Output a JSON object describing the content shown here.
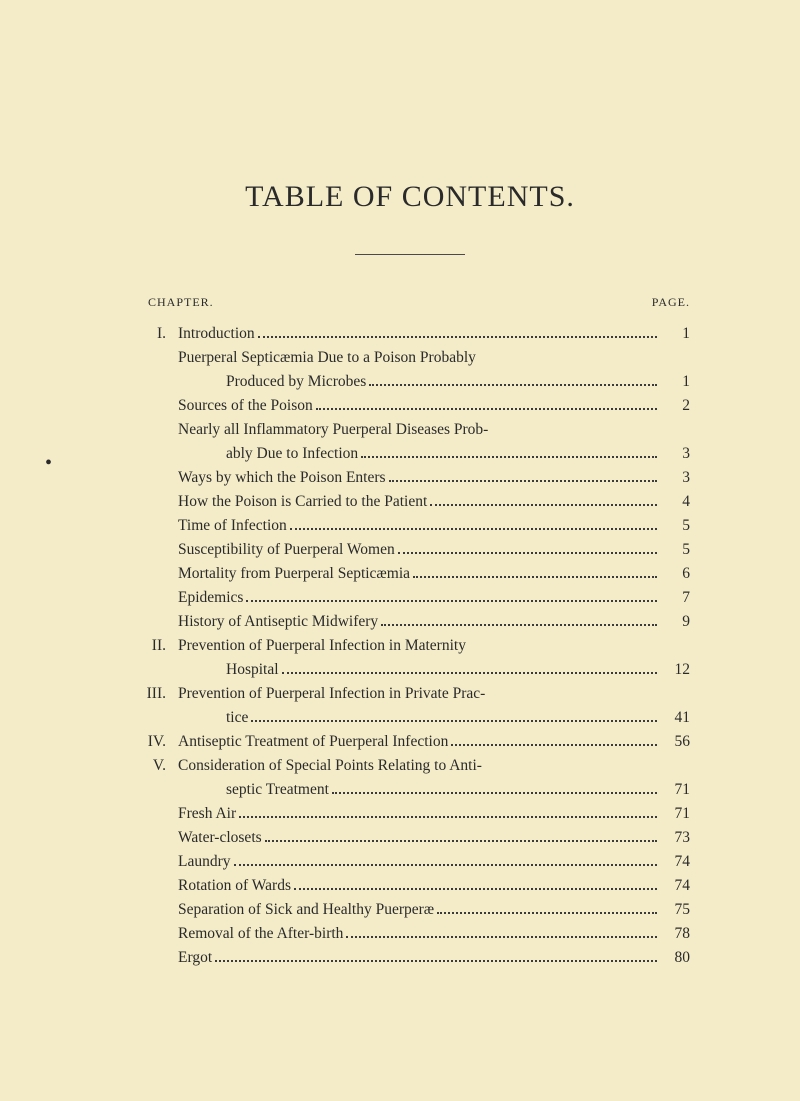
{
  "title": "TABLE OF CONTENTS.",
  "headers": {
    "chapter": "CHAPTER.",
    "page": "PAGE."
  },
  "entries": [
    {
      "roman": "I.",
      "text": "Introduction",
      "page": "1",
      "type": "main"
    },
    {
      "text": "Puerperal Septicæmia Due to a Poison Probably",
      "type": "sub-nowrap"
    },
    {
      "text": "Produced by Microbes",
      "page": "1",
      "type": "cont"
    },
    {
      "text": "Sources of the Poison",
      "page": "2",
      "type": "sub"
    },
    {
      "text": "Nearly all Inflammatory Puerperal Diseases Prob-",
      "type": "sub-nowrap"
    },
    {
      "text": "ably Due to Infection",
      "page": "3",
      "type": "cont"
    },
    {
      "text": "Ways by which the Poison Enters",
      "page": "3",
      "type": "sub"
    },
    {
      "text": "How the Poison is Carried to the Patient",
      "page": "4",
      "type": "sub"
    },
    {
      "text": "Time of Infection",
      "page": "5",
      "type": "sub"
    },
    {
      "text": "Susceptibility of Puerperal Women",
      "page": "5",
      "type": "sub"
    },
    {
      "text": "Mortality from Puerperal Septicæmia",
      "page": "6",
      "type": "sub"
    },
    {
      "text": "Epidemics",
      "page": "7",
      "type": "sub"
    },
    {
      "text": "History of Antiseptic Midwifery",
      "page": "9",
      "type": "sub"
    },
    {
      "roman": "II.",
      "text": "Prevention of Puerperal Infection in Maternity",
      "type": "main-nowrap"
    },
    {
      "text": "Hospital",
      "page": "12",
      "type": "cont"
    },
    {
      "roman": "III.",
      "text": "Prevention of Puerperal Infection in Private Prac-",
      "type": "main-nowrap"
    },
    {
      "text": "tice",
      "page": "41",
      "type": "cont"
    },
    {
      "roman": "IV.",
      "text": "Antiseptic Treatment of Puerperal Infection",
      "page": "56",
      "type": "main"
    },
    {
      "roman": "V.",
      "text": "Consideration of Special Points Relating to Anti-",
      "type": "main-nowrap"
    },
    {
      "text": "septic Treatment",
      "page": "71",
      "type": "cont"
    },
    {
      "text": "Fresh Air",
      "page": "71",
      "type": "sub"
    },
    {
      "text": "Water-closets",
      "page": "73",
      "type": "sub"
    },
    {
      "text": "Laundry",
      "page": "74",
      "type": "sub"
    },
    {
      "text": "Rotation of Wards",
      "page": "74",
      "type": "sub"
    },
    {
      "text": "Separation of Sick and Healthy Puerperæ",
      "page": "75",
      "type": "sub"
    },
    {
      "text": "Removal of the After-birth",
      "page": "78",
      "type": "sub"
    },
    {
      "text": "Ergot",
      "page": "80",
      "type": "sub"
    }
  ],
  "colors": {
    "background": "#f4ecc8",
    "text": "#2a2a2a"
  },
  "typography": {
    "title_fontsize": 30,
    "body_fontsize": 15.5,
    "header_fontsize": 12
  }
}
